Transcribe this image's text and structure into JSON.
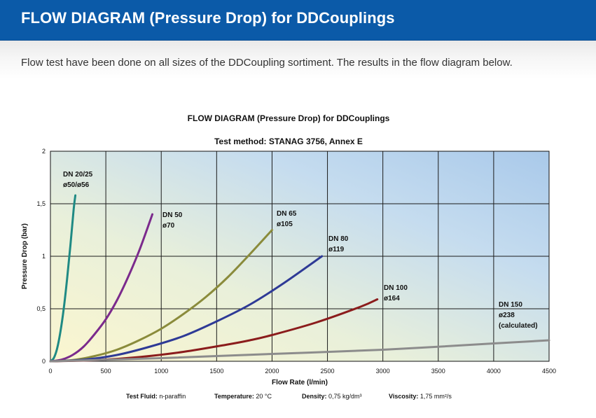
{
  "header": {
    "title": "FLOW DIAGRAM (Pressure Drop) for DDCouplings"
  },
  "intro": {
    "text": "Flow test have been done on all sizes of the DDCoupling sortiment. The results in the flow diagram below."
  },
  "chart_data": {
    "type": "line",
    "title": "FLOW DIAGRAM (Pressure Drop) for DDCouplings",
    "subtitle": "Test method: STANAG 3756, Annex E",
    "xlabel": "Flow Rate (l/min)",
    "ylabel": "Pressure Drop (bar)",
    "xlim": [
      0,
      4500
    ],
    "ylim": [
      0,
      2
    ],
    "xticks": [
      0,
      500,
      1000,
      1500,
      2000,
      2500,
      3000,
      3500,
      4000,
      4500
    ],
    "yticks": [
      0,
      0.5,
      1,
      1.5,
      2
    ],
    "ytick_labels": [
      "0",
      "0,5",
      "1",
      "1,5",
      "2"
    ],
    "grid": true,
    "background": "gradient light yellow to light blue",
    "series": [
      {
        "name": "DN 20/25",
        "label_lines": [
          "DN 20/25",
          "ø50/ø56"
        ],
        "color": "#1f8a84",
        "x": [
          0,
          30,
          60,
          90,
          120,
          150,
          180,
          210,
          225
        ],
        "y": [
          0,
          0.03,
          0.12,
          0.28,
          0.5,
          0.78,
          1.1,
          1.45,
          1.58
        ]
      },
      {
        "name": "DN 50",
        "label_lines": [
          "DN 50",
          "ø70"
        ],
        "color": "#7b2a8c",
        "x": [
          0,
          100,
          200,
          300,
          400,
          500,
          600,
          700,
          800,
          900,
          920
        ],
        "y": [
          0,
          0.015,
          0.06,
          0.14,
          0.26,
          0.4,
          0.58,
          0.8,
          1.05,
          1.34,
          1.4
        ]
      },
      {
        "name": "DN 65",
        "label_lines": [
          "DN 65",
          "ø105"
        ],
        "color": "#8a8b3b",
        "x": [
          0,
          200,
          400,
          600,
          800,
          1000,
          1200,
          1400,
          1600,
          1800,
          2000
        ],
        "y": [
          0,
          0.012,
          0.05,
          0.11,
          0.2,
          0.31,
          0.45,
          0.61,
          0.8,
          1.02,
          1.25
        ]
      },
      {
        "name": "DN 80",
        "label_lines": [
          "DN 80",
          "ø119"
        ],
        "color": "#2e3a96",
        "x": [
          0,
          300,
          600,
          900,
          1200,
          1500,
          1800,
          2100,
          2450
        ],
        "y": [
          0,
          0.015,
          0.06,
          0.14,
          0.24,
          0.38,
          0.54,
          0.74,
          1.0
        ]
      },
      {
        "name": "DN 100",
        "label_lines": [
          "DN 100",
          "ø164"
        ],
        "color": "#8b1c1c",
        "x": [
          0,
          400,
          800,
          1200,
          1600,
          1800,
          2000,
          2400,
          2800,
          2950
        ],
        "y": [
          0,
          0.01,
          0.04,
          0.09,
          0.16,
          0.2,
          0.25,
          0.37,
          0.52,
          0.59
        ]
      },
      {
        "name": "DN 150",
        "label_lines": [
          "DN 150",
          "ø238",
          "(calculated)"
        ],
        "color": "#8c8c8c",
        "x": [
          0,
          1000,
          2000,
          3000,
          4000,
          4500
        ],
        "y": [
          0,
          0.03,
          0.07,
          0.11,
          0.17,
          0.2
        ]
      }
    ],
    "footer": [
      {
        "label": "Test Fluid:",
        "value": "n-paraffin"
      },
      {
        "label": "Temperature:",
        "value": "20 °C"
      },
      {
        "label": "Density:",
        "value": "0,75 kg/dm³"
      },
      {
        "label": "Viscosity:",
        "value": "1,75 mm²/s"
      }
    ]
  }
}
